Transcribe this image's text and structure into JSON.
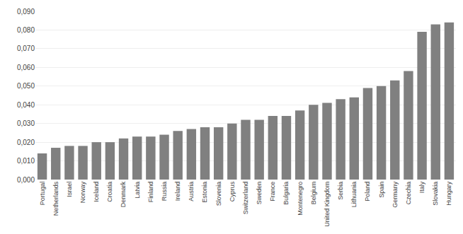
{
  "chart_data": {
    "type": "bar",
    "categories": [
      "Portugal",
      "Netherlands",
      "Israel",
      "Norway",
      "Iceland",
      "Croatia",
      "Denmark",
      "Latvia",
      "Finland",
      "Russia",
      "Ireland",
      "Austria",
      "Estonia",
      "Slovenia",
      "Cyprus",
      "Switzerland",
      "Sweden",
      "France",
      "Bulgaria",
      "Montenegro",
      "Belgium",
      "United Kingdom",
      "Serbia",
      "Lithuania",
      "Poland",
      "Spain",
      "Germany",
      "Czechia",
      "Italy",
      "Slovakia",
      "Hungary"
    ],
    "values": [
      0.014,
      0.017,
      0.018,
      0.018,
      0.02,
      0.02,
      0.022,
      0.023,
      0.023,
      0.024,
      0.026,
      0.027,
      0.028,
      0.028,
      0.03,
      0.032,
      0.032,
      0.034,
      0.034,
      0.037,
      0.04,
      0.041,
      0.043,
      0.044,
      0.049,
      0.05,
      0.053,
      0.058,
      0.079,
      0.083,
      0.084
    ],
    "color": "#808080",
    "ylim": [
      0,
      0.09
    ],
    "yticks": [
      {
        "value": 0.0,
        "label": "0,000"
      },
      {
        "value": 0.01,
        "label": "0,010"
      },
      {
        "value": 0.02,
        "label": "0,020"
      },
      {
        "value": 0.03,
        "label": "0,030"
      },
      {
        "value": 0.04,
        "label": "0,040"
      },
      {
        "value": 0.05,
        "label": "0,050"
      },
      {
        "value": 0.06,
        "label": "0,060"
      },
      {
        "value": 0.07,
        "label": "0,070"
      },
      {
        "value": 0.08,
        "label": "0,080"
      },
      {
        "value": 0.09,
        "label": "0,090"
      }
    ],
    "grid": true
  }
}
